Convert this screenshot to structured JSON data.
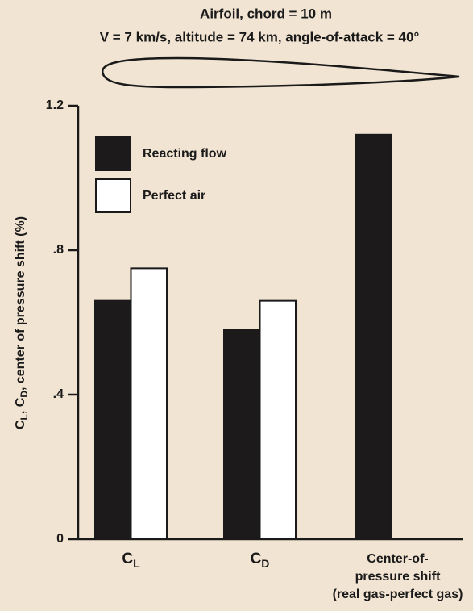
{
  "chart_data": {
    "type": "bar",
    "title": "Airfoil, chord = 10 m",
    "subtitle": "V = 7 km/s, altitude = 74 km, angle-of-attack = 40°",
    "ylabel": [
      "C",
      "L",
      ", C",
      "D",
      ", center of pressure shift (%)"
    ],
    "categories": [
      [
        "C",
        "L"
      ],
      [
        "C",
        "D"
      ],
      [
        "Center-of-",
        "pressure shift",
        "(real gas-perfect gas)"
      ]
    ],
    "series": [
      {
        "name": "Reacting flow",
        "color": "#1c1a1a",
        "values": [
          0.66,
          0.58,
          1.12
        ]
      },
      {
        "name": "Perfect air",
        "color": "#ffffff",
        "values": [
          0.75,
          0.66,
          null
        ]
      }
    ],
    "ylim": [
      0,
      1.2
    ],
    "yticks": [
      0,
      {
        "value": 0.4,
        "label": ".4"
      },
      {
        "value": 0.8,
        "label": ".8"
      },
      1.2
    ],
    "legend": "upper-left"
  }
}
